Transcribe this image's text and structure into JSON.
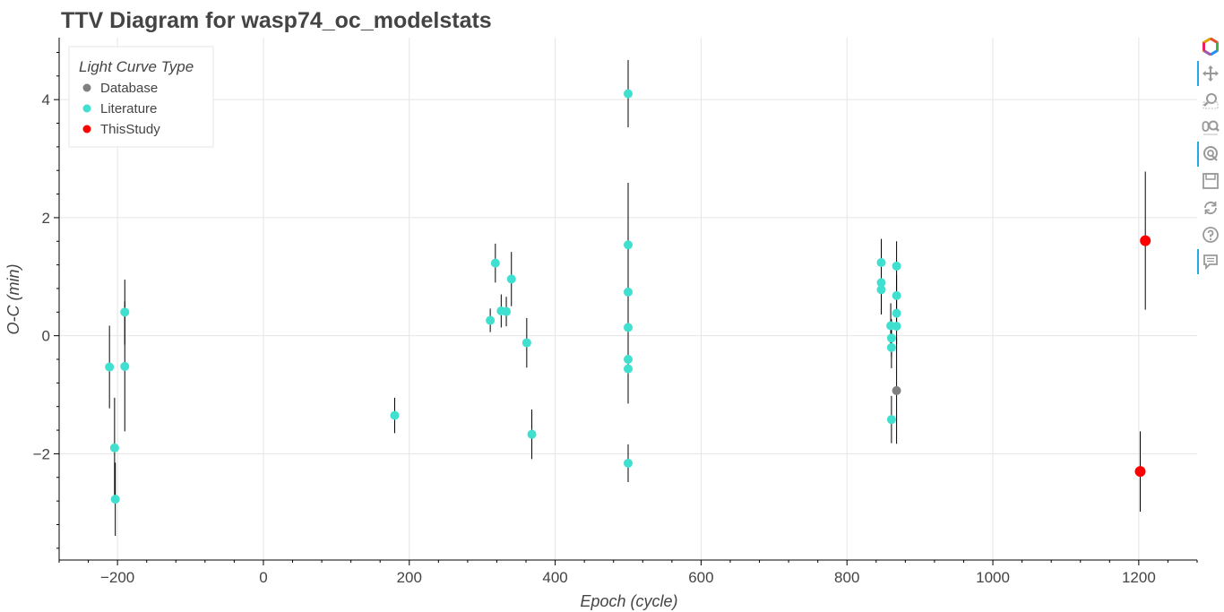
{
  "chart_data": {
    "type": "scatter",
    "title": "TTV Diagram for wasp74_oc_modelstats",
    "xlabel": "Epoch (cycle)",
    "ylabel": "O-C (min)",
    "xlim": [
      -280,
      1280
    ],
    "ylim": [
      -3.8,
      5.05
    ],
    "x_ticks": [
      -200,
      0,
      200,
      400,
      600,
      800,
      1000,
      1200
    ],
    "y_ticks": [
      -2,
      0,
      2,
      4
    ],
    "grid": true,
    "legend": {
      "title": "Light Curve Type",
      "placement": "top-left",
      "entries": [
        "Database",
        "Literature",
        "ThisStudy"
      ]
    },
    "series": [
      {
        "name": "Database",
        "color": "#808080",
        "points": [
          {
            "x": 868,
            "y": -0.93,
            "err": 0.9
          }
        ]
      },
      {
        "name": "Literature",
        "color": "#40e0d0",
        "points": [
          {
            "x": -211,
            "y": -0.53,
            "err": 0.7
          },
          {
            "x": -204,
            "y": -1.9,
            "err": 0.85
          },
          {
            "x": -203,
            "y": -2.77,
            "err": 0.62
          },
          {
            "x": -190,
            "y": 0.4,
            "err": 0.55
          },
          {
            "x": -190,
            "y": -0.52,
            "err": 1.1
          },
          {
            "x": 180,
            "y": -1.35,
            "err": 0.3
          },
          {
            "x": 311,
            "y": 0.26,
            "err": 0.2
          },
          {
            "x": 318,
            "y": 1.23,
            "err": 0.33
          },
          {
            "x": 326,
            "y": 0.42,
            "err": 0.28
          },
          {
            "x": 333,
            "y": 0.41,
            "err": 0.25
          },
          {
            "x": 340,
            "y": 0.96,
            "err": 0.46
          },
          {
            "x": 361,
            "y": -0.12,
            "err": 0.42
          },
          {
            "x": 368,
            "y": -1.67,
            "err": 0.42
          },
          {
            "x": 500,
            "y": 4.1,
            "err": 0.57
          },
          {
            "x": 500,
            "y": 1.54,
            "err": 1.05
          },
          {
            "x": 500,
            "y": 0.74,
            "err": 0.5
          },
          {
            "x": 500,
            "y": 0.14,
            "err": 0.45
          },
          {
            "x": 500,
            "y": -0.4,
            "err": 0.75
          },
          {
            "x": 500,
            "y": -0.56,
            "err": 0.5
          },
          {
            "x": 500,
            "y": -2.16,
            "err": 0.32
          },
          {
            "x": 847,
            "y": 1.24,
            "err": 0.4
          },
          {
            "x": 847,
            "y": 0.9,
            "err": 0.3
          },
          {
            "x": 847,
            "y": 0.78,
            "err": 0.42
          },
          {
            "x": 860,
            "y": 0.17,
            "err": 0.38
          },
          {
            "x": 861,
            "y": -0.04,
            "err": 0.32
          },
          {
            "x": 861,
            "y": -0.2,
            "err": 0.35
          },
          {
            "x": 861,
            "y": -1.42,
            "err": 0.4
          },
          {
            "x": 868,
            "y": 1.18,
            "err": 0.42
          },
          {
            "x": 868,
            "y": 0.68,
            "err": 0.35
          },
          {
            "x": 868,
            "y": 0.38,
            "err": 0.3
          },
          {
            "x": 868,
            "y": 0.16,
            "err": 0.3
          }
        ]
      },
      {
        "name": "ThisStudy",
        "color": "#ff0000",
        "points": [
          {
            "x": 1209,
            "y": 1.61,
            "err": 1.17
          },
          {
            "x": 1202,
            "y": -2.3,
            "err": 0.68
          }
        ]
      }
    ]
  },
  "toolbar": {
    "tools": [
      {
        "icon": "bokeh-logo-icon",
        "active": false
      },
      {
        "icon": "pan-icon",
        "active": true
      },
      {
        "icon": "box-zoom-icon",
        "active": false
      },
      {
        "icon": "wheel-zoom-icon",
        "active": false
      },
      {
        "icon": "lasso-icon",
        "active": true
      },
      {
        "icon": "save-icon",
        "active": false
      },
      {
        "icon": "reset-icon",
        "active": false
      },
      {
        "icon": "help-icon",
        "active": false
      },
      {
        "icon": "hover-icon",
        "active": true
      }
    ]
  }
}
